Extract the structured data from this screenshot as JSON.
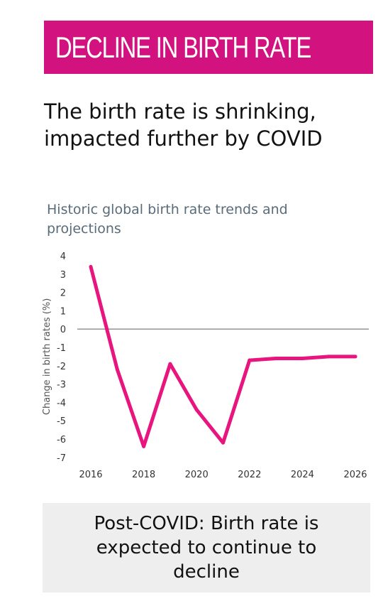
{
  "banner": {
    "title": "DECLINE IN BIRTH RATE",
    "color": "#d1127f"
  },
  "headline": {
    "lines": [
      "The birth rate is shrinking,",
      "impacted further by COVID"
    ]
  },
  "callout": {
    "lines": [
      "Post-COVID: Birth rate is",
      "expected to continue to",
      "decline"
    ]
  },
  "chart_data": {
    "type": "line",
    "title": "Historic global birth rate trends and projections",
    "ylabel": "Change in birth rates (%)",
    "xlabel": "",
    "ylim": [
      -7,
      4
    ],
    "xlim": [
      2016,
      2026
    ],
    "yticks": [
      4,
      3,
      2,
      1,
      0,
      -1,
      -2,
      -3,
      -4,
      -5,
      -6,
      -7
    ],
    "xticks": [
      2016,
      2018,
      2020,
      2022,
      2024,
      2026
    ],
    "zero_line": true,
    "grid": false,
    "line_color": "#e8157f",
    "x": [
      2016,
      2017,
      2018,
      2019,
      2020,
      2021,
      2022,
      2023,
      2024,
      2025,
      2026
    ],
    "y": [
      3.4,
      -2.2,
      -6.4,
      -1.9,
      -4.4,
      -6.2,
      -1.7,
      -1.6,
      -1.6,
      -1.5,
      -1.5
    ]
  }
}
